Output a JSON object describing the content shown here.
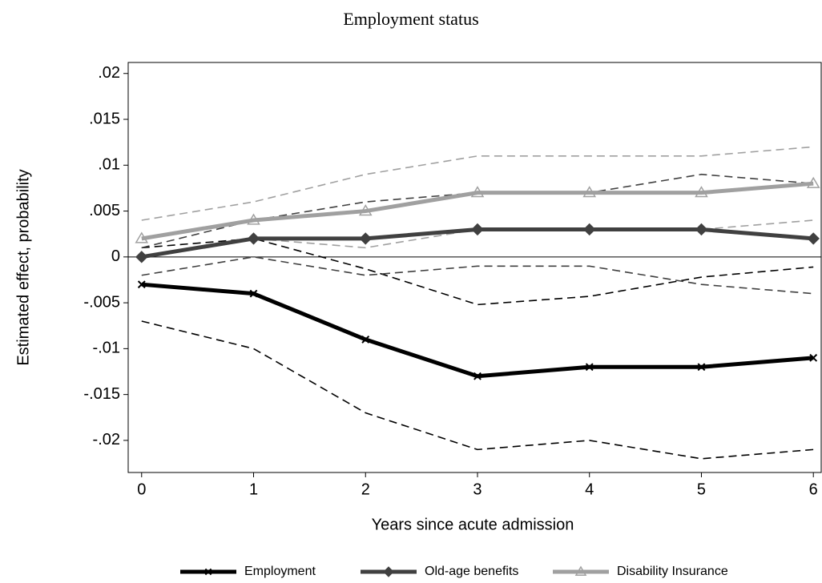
{
  "chart_data": {
    "type": "line",
    "title": "Employment status",
    "x_label": "Years since acute admission",
    "y_label": "Estimated effect, probability",
    "x": [
      0,
      1,
      2,
      3,
      4,
      5,
      6
    ],
    "xlim": [
      -0.12,
      6.07
    ],
    "xticks": [
      0,
      1,
      2,
      3,
      4,
      5,
      6
    ],
    "ylim": [
      -0.0235,
      0.0212
    ],
    "yticks": [
      {
        "value": 0.02,
        "label": ".02"
      },
      {
        "value": 0.015,
        "label": ".015"
      },
      {
        "value": 0.01,
        "label": ".01"
      },
      {
        "value": 0.005,
        "label": ".005"
      },
      0,
      {
        "value": -0.005,
        "label": "-.005"
      },
      {
        "value": -0.01,
        "label": "-.01"
      },
      {
        "value": -0.015,
        "label": "-.015"
      },
      {
        "value": -0.02,
        "label": "-.02"
      }
    ],
    "series": [
      {
        "name": "Employment",
        "color": "#000000",
        "marker": "x",
        "values": [
          -0.003,
          -0.004,
          -0.009,
          -0.013,
          -0.012,
          -0.012,
          -0.011
        ],
        "lower": [
          -0.007,
          -0.01,
          -0.017,
          -0.021,
          -0.02,
          -0.022,
          -0.021
        ],
        "upper": [
          0.001,
          0.002,
          -0.0013,
          -0.0052,
          -0.0043,
          -0.0022,
          -0.0011
        ]
      },
      {
        "name": "Old-age benefits",
        "color": "#404040",
        "marker": "diamond",
        "values": [
          0,
          0.002,
          0.002,
          0.003,
          0.003,
          0.003,
          0.002
        ],
        "lower": [
          -0.002,
          0,
          -0.002,
          -0.001,
          -0.001,
          -0.003,
          -0.004
        ],
        "upper": [
          0.001,
          0.004,
          0.006,
          0.007,
          0.007,
          0.009,
          0.008
        ]
      },
      {
        "name": "Disability Insurance",
        "color": "#a0a0a0",
        "marker": "triangle",
        "values": [
          0.002,
          0.004,
          0.005,
          0.007,
          0.007,
          0.007,
          0.008
        ],
        "lower": [
          0,
          0.002,
          0.001,
          0.003,
          0.003,
          0.003,
          0.004
        ],
        "upper": [
          0.004,
          0.006,
          0.009,
          0.011,
          0.011,
          0.011,
          0.012
        ]
      }
    ]
  }
}
